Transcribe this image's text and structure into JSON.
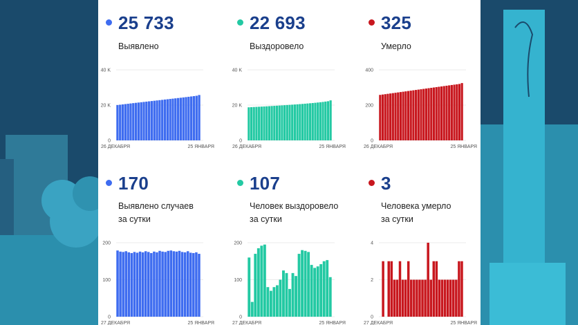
{
  "colors": {
    "blue": "#3e6cf0",
    "teal": "#23c9a3",
    "red": "#c8171e",
    "number": "#1a3f8c"
  },
  "cards": [
    {
      "value": "25 733",
      "label_lines": [
        "Выявлено"
      ],
      "color": "#3e6cf0",
      "chart_data": {
        "type": "bar",
        "ylim": [
          0,
          40000
        ],
        "yticks": [
          {
            "v": 0,
            "label": "0"
          },
          {
            "v": 20000,
            "label": "20 K"
          },
          {
            "v": 40000,
            "label": "40 K"
          }
        ],
        "x_start_label": "26 ДЕКАБРЯ",
        "x_end_label": "25 ЯНВАРЯ",
        "values": [
          20040,
          20220,
          20400,
          20580,
          20760,
          20940,
          21120,
          21290,
          21460,
          21630,
          21800,
          21970,
          22140,
          22310,
          22480,
          22650,
          22820,
          22990,
          23160,
          23330,
          23500,
          23670,
          23840,
          24010,
          24180,
          24360,
          24540,
          24720,
          24910,
          25100,
          25300,
          25733
        ]
      }
    },
    {
      "value": "22 693",
      "label_lines": [
        "Выздоровело"
      ],
      "color": "#23c9a3",
      "chart_data": {
        "type": "bar",
        "ylim": [
          0,
          40000
        ],
        "yticks": [
          {
            "v": 0,
            "label": "0"
          },
          {
            "v": 20000,
            "label": "20 K"
          },
          {
            "v": 40000,
            "label": "40 K"
          }
        ],
        "x_start_label": "26 ДЕКАБРЯ",
        "x_end_label": "25 ЯНВАРЯ",
        "values": [
          18750,
          18830,
          18910,
          18990,
          19070,
          19150,
          19230,
          19310,
          19400,
          19490,
          19580,
          19670,
          19760,
          19850,
          19950,
          20050,
          20150,
          20250,
          20350,
          20460,
          20570,
          20680,
          20800,
          20920,
          21050,
          21180,
          21320,
          21470,
          21630,
          21800,
          22000,
          22200,
          22693
        ]
      }
    },
    {
      "value": "325",
      "label_lines": [
        "Умерло"
      ],
      "color": "#c8171e",
      "chart_data": {
        "type": "bar",
        "ylim": [
          0,
          400
        ],
        "yticks": [
          {
            "v": 0,
            "label": "0"
          },
          {
            "v": 200,
            "label": "200"
          },
          {
            "v": 400,
            "label": "400"
          }
        ],
        "x_start_label": "26 ДЕКАБРЯ",
        "x_end_label": "25 ЯНВАРЯ",
        "values": [
          258,
          260,
          262,
          264,
          266,
          268,
          270,
          272,
          274,
          276,
          278,
          280,
          282,
          284,
          286,
          288,
          290,
          292,
          294,
          296,
          298,
          300,
          302,
          304,
          306,
          308,
          310,
          312,
          314,
          316,
          318,
          320,
          325
        ]
      }
    },
    {
      "value": "170",
      "label_lines": [
        "Выявлено случаев",
        "за сутки"
      ],
      "color": "#3e6cf0",
      "chart_data": {
        "type": "bar",
        "ylim": [
          0,
          200
        ],
        "yticks": [
          {
            "v": 0,
            "label": "0"
          },
          {
            "v": 100,
            "label": "100"
          },
          {
            "v": 200,
            "label": "200"
          }
        ],
        "x_start_label": "27 ДЕКАБРЯ",
        "x_end_label": "25 ЯНВАРЯ",
        "values": [
          179,
          176,
          175,
          177,
          174,
          172,
          175,
          173,
          176,
          174,
          177,
          175,
          172,
          176,
          174,
          178,
          176,
          175,
          178,
          179,
          177,
          176,
          178,
          175,
          174,
          177,
          173,
          172,
          174,
          170
        ]
      }
    },
    {
      "value": "107",
      "label_lines": [
        "Человек выздоровело",
        "за сутки"
      ],
      "color": "#23c9a3",
      "chart_data": {
        "type": "bar",
        "ylim": [
          0,
          200
        ],
        "yticks": [
          {
            "v": 0,
            "label": "0"
          },
          {
            "v": 100,
            "label": "100"
          },
          {
            "v": 200,
            "label": "200"
          }
        ],
        "x_start_label": "27 ДЕКАБРЯ",
        "x_end_label": "25 ЯНВАРЯ",
        "values": [
          160,
          40,
          170,
          185,
          192,
          195,
          80,
          70,
          80,
          85,
          100,
          125,
          118,
          75,
          118,
          110,
          170,
          180,
          178,
          175,
          140,
          132,
          136,
          142,
          150,
          153,
          107
        ]
      }
    },
    {
      "value": "3",
      "label_lines": [
        "Человека умерло",
        "за сутки"
      ],
      "color": "#c8171e",
      "chart_data": {
        "type": "bar",
        "ylim": [
          0,
          4
        ],
        "yticks": [
          {
            "v": 0,
            "label": "0"
          },
          {
            "v": 2,
            "label": "2"
          },
          {
            "v": 4,
            "label": "4"
          }
        ],
        "x_start_label": "27 ДЕКАБРЯ",
        "x_end_label": "25 ЯНВАРЯ",
        "values": [
          0,
          3,
          0,
          3,
          3,
          2,
          2,
          3,
          2,
          2,
          3,
          2,
          2,
          2,
          2,
          2,
          2,
          4,
          2,
          3,
          3,
          2,
          2,
          2,
          2,
          2,
          2,
          2,
          3,
          3
        ]
      }
    }
  ]
}
